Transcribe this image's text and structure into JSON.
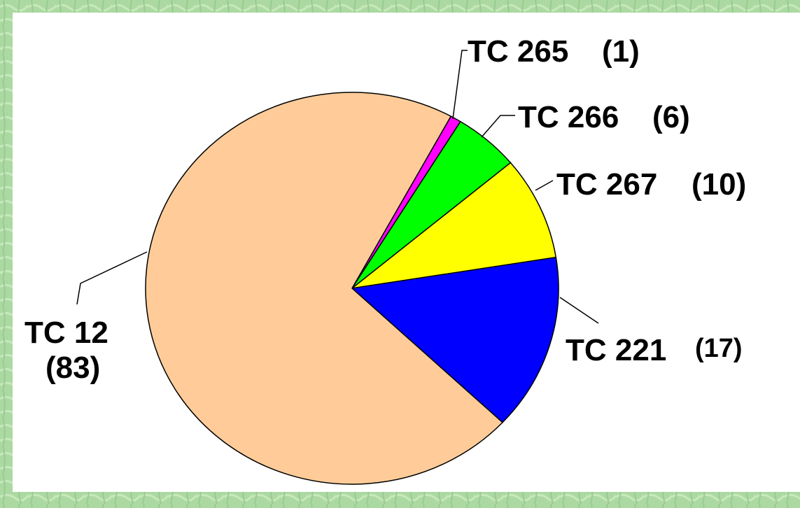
{
  "chart_data": {
    "type": "pie",
    "categories": [
      "TC 265",
      "TC 266",
      "TC 267",
      "TC 221",
      "TC 12"
    ],
    "values": [
      1,
      6,
      10,
      17,
      83
    ],
    "value_labels": [
      "(1)",
      "(6)",
      "(10)",
      "(17)",
      "(83)"
    ],
    "colors": [
      "#ff00ff",
      "#00ff00",
      "#ffff00",
      "#0000ff",
      "#ffcc99"
    ]
  }
}
